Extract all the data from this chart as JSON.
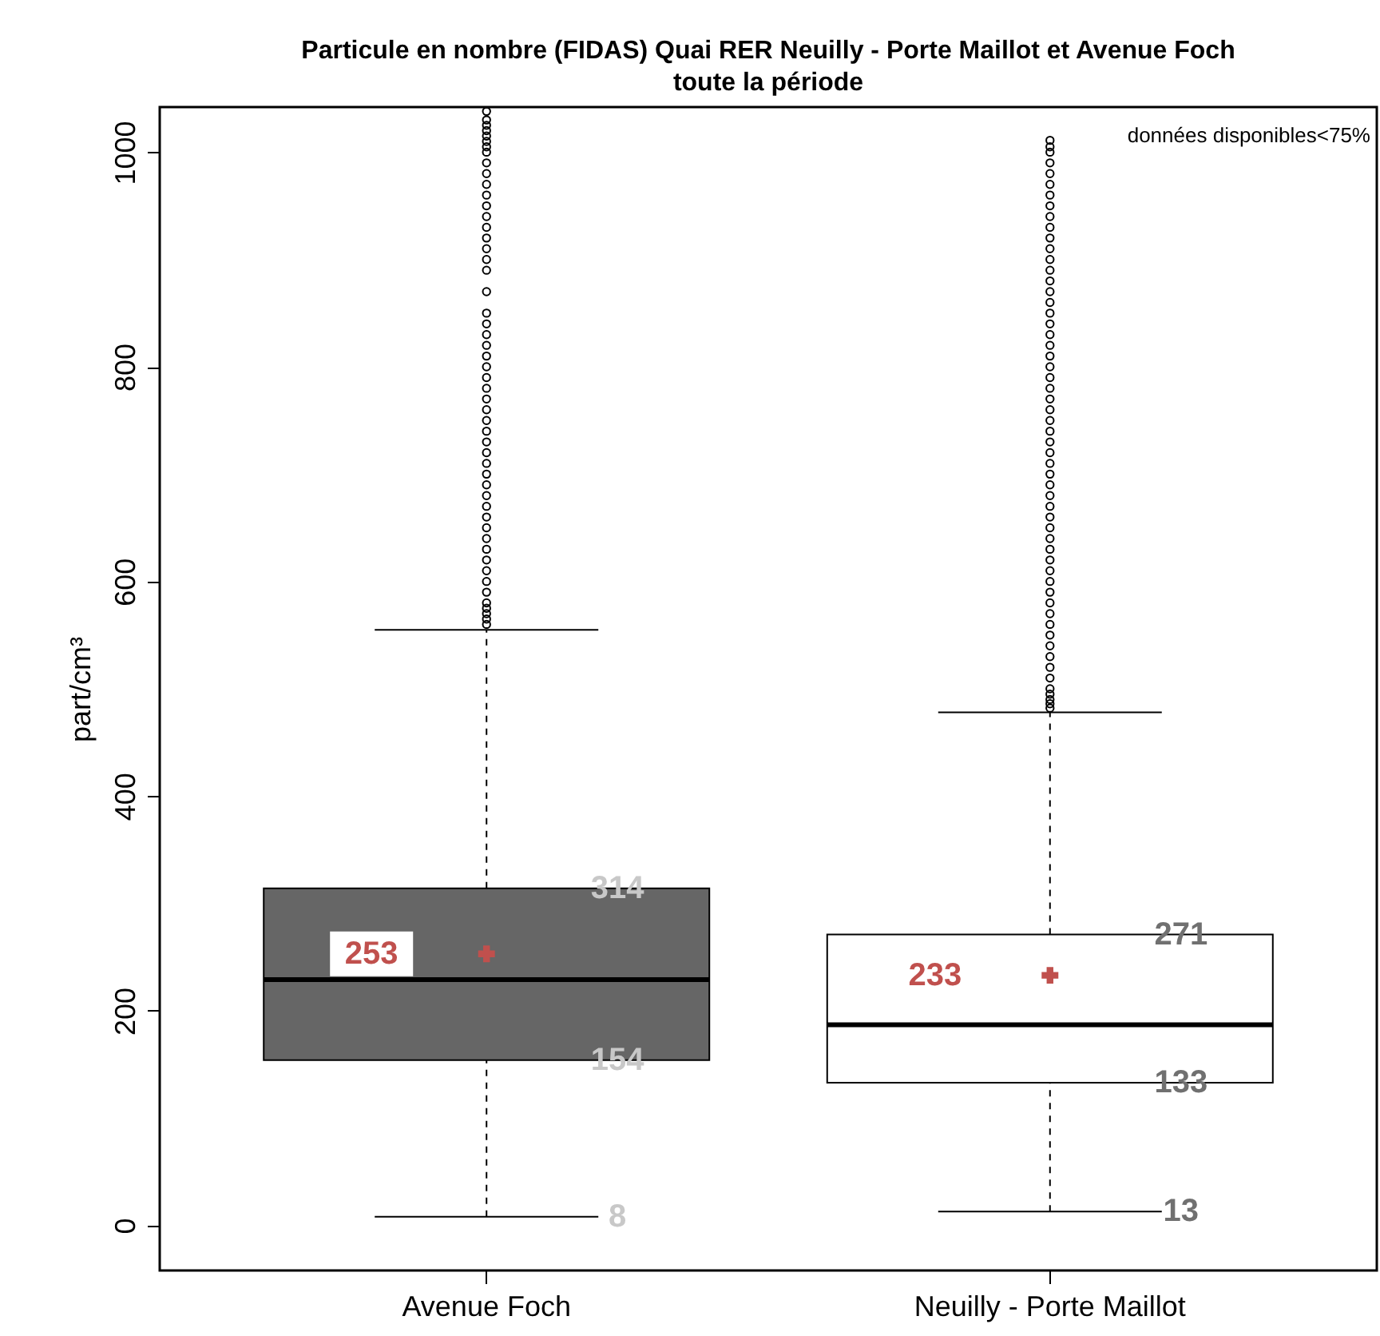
{
  "chart_data": {
    "type": "box",
    "title": "Particule en nombre (FIDAS) Quai RER Neuilly - Porte Maillot et Avenue Foch\ntoute la période",
    "ylabel": "part/cm³",
    "categories": [
      "Avenue Foch",
      "Neuilly - Porte Maillot"
    ],
    "colors": [
      "#666666",
      "#ffffff"
    ],
    "boxes": [
      {
        "low": 8,
        "q1": 154,
        "median": 229,
        "q3": 314,
        "high": 555,
        "mean": 253,
        "outliers": [
          560,
          565,
          570,
          575,
          580,
          590,
          600,
          610,
          620,
          630,
          640,
          650,
          660,
          670,
          680,
          690,
          700,
          710,
          720,
          730,
          740,
          750,
          760,
          770,
          780,
          790,
          800,
          810,
          820,
          830,
          840,
          850,
          870,
          890,
          900,
          910,
          920,
          930,
          940,
          950,
          960,
          970,
          980,
          990,
          1000,
          1005,
          1010,
          1015,
          1020,
          1025,
          1030,
          1038
        ]
      },
      {
        "low": 13,
        "q1": 133,
        "median": 187,
        "q3": 271,
        "high": 478,
        "mean": 233,
        "outliers": [
          482,
          486,
          490,
          495,
          500,
          510,
          520,
          530,
          540,
          550,
          560,
          570,
          580,
          590,
          600,
          610,
          620,
          630,
          640,
          650,
          660,
          670,
          680,
          690,
          700,
          710,
          720,
          730,
          740,
          750,
          760,
          770,
          780,
          790,
          800,
          810,
          820,
          830,
          840,
          850,
          860,
          870,
          880,
          890,
          900,
          910,
          920,
          930,
          940,
          950,
          960,
          970,
          980,
          990,
          1000,
          1005,
          1011
        ]
      }
    ],
    "ylim": [
      -42,
      1042
    ],
    "yticks": [
      0,
      200,
      400,
      600,
      800,
      1000
    ],
    "grid": false,
    "annotations": [
      "253",
      "314",
      "154",
      "8",
      "233",
      "271",
      "133",
      "13",
      "données disponibles<75%"
    ]
  }
}
